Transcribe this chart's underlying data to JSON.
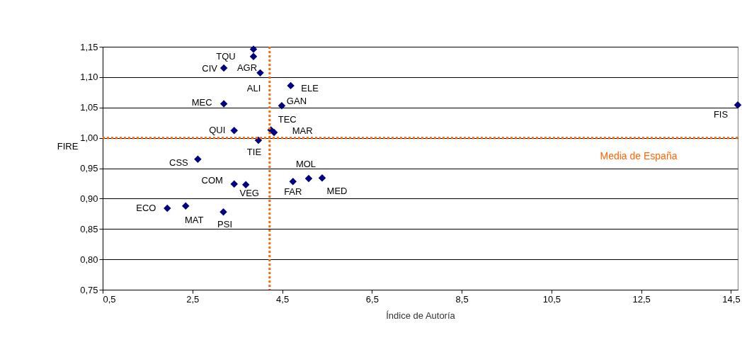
{
  "chart_data": {
    "type": "scatter",
    "xlabel": "Índice de Autoría",
    "ylabel": "FIRE",
    "x": [
      3.86,
      3.86,
      3.2,
      4.01,
      4.69,
      3.2,
      4.49,
      4.25,
      3.43,
      4.32,
      3.97,
      2.62,
      3.43,
      3.69,
      4.74,
      5.09,
      5.39,
      1.94,
      2.35,
      3.19,
      14.65
    ],
    "series": [
      {
        "color": "#000080",
        "values": [
          1.146,
          1.134,
          1.115,
          1.107,
          1.086,
          1.056,
          1.053,
          1.013,
          1.012,
          1.009,
          0.996,
          0.965,
          0.924,
          0.923,
          0.928,
          0.933,
          0.934,
          0.884,
          0.888,
          0.878,
          1.054
        ]
      }
    ],
    "marker": "diamond",
    "grid": "y",
    "xlim": [
      0.5,
      14.65
    ],
    "ylim": [
      0.75,
      1.15
    ],
    "xticks": [
      {
        "value": 0.5,
        "label": "0,5"
      },
      {
        "value": 2.5,
        "label": "2,5"
      },
      {
        "value": 4.5,
        "label": "4,5"
      },
      {
        "value": 6.5,
        "label": "6,5"
      },
      {
        "value": 8.5,
        "label": "8,5"
      },
      {
        "value": 10.5,
        "label": "10,5"
      },
      {
        "value": 12.5,
        "label": "12,5"
      },
      {
        "value": 14.5,
        "label": "14,5"
      }
    ],
    "yticks": [
      {
        "value": 0.75,
        "label": "0,75"
      },
      {
        "value": 0.8,
        "label": "0,80"
      },
      {
        "value": 0.85,
        "label": "0,85"
      },
      {
        "value": 0.9,
        "label": "0,90"
      },
      {
        "value": 0.95,
        "label": "0,95"
      },
      {
        "value": 1.0,
        "label": "1,00"
      },
      {
        "value": 1.05,
        "label": "1,05"
      },
      {
        "value": 1.1,
        "label": "1,10"
      },
      {
        "value": 1.15,
        "label": "1,15"
      }
    ],
    "ref_lines": [
      {
        "axis": "x",
        "value": 4.22,
        "color": "#ff6600",
        "line_style": "dotted"
      },
      {
        "axis": "y",
        "value": 1.0,
        "label": "Media de España",
        "color": "#ff6600",
        "line_style": "dotted"
      }
    ],
    "annotations": [
      {
        "text": "TQU",
        "x": 3.86,
        "y": 1.146
      },
      {
        "text": "AGR",
        "x": 3.86,
        "y": 1.134
      },
      {
        "text": "CIV",
        "x": 3.2,
        "y": 1.115
      },
      {
        "text": "ALI",
        "x": 4.01,
        "y": 1.107
      },
      {
        "text": "ELE",
        "x": 4.69,
        "y": 1.086
      },
      {
        "text": "MEC",
        "x": 3.2,
        "y": 1.056
      },
      {
        "text": "GAN",
        "x": 4.49,
        "y": 1.053
      },
      {
        "text": "TEC",
        "x": 4.25,
        "y": 1.013
      },
      {
        "text": "QUI",
        "x": 3.43,
        "y": 1.012
      },
      {
        "text": "MAR",
        "x": 4.32,
        "y": 1.009
      },
      {
        "text": "TIE",
        "x": 3.97,
        "y": 0.996
      },
      {
        "text": "CSS",
        "x": 2.62,
        "y": 0.965
      },
      {
        "text": "COM",
        "x": 3.43,
        "y": 0.924
      },
      {
        "text": "VEG",
        "x": 3.69,
        "y": 0.923
      },
      {
        "text": "FAR",
        "x": 4.74,
        "y": 0.928
      },
      {
        "text": "MOL",
        "x": 5.09,
        "y": 0.933
      },
      {
        "text": "MED",
        "x": 5.39,
        "y": 0.934
      },
      {
        "text": "ECO",
        "x": 1.94,
        "y": 0.884
      },
      {
        "text": "MAT",
        "x": 2.35,
        "y": 0.888
      },
      {
        "text": "PSI",
        "x": 3.19,
        "y": 0.878
      },
      {
        "text": "FIS",
        "x": 14.65,
        "y": 1.054
      }
    ]
  }
}
